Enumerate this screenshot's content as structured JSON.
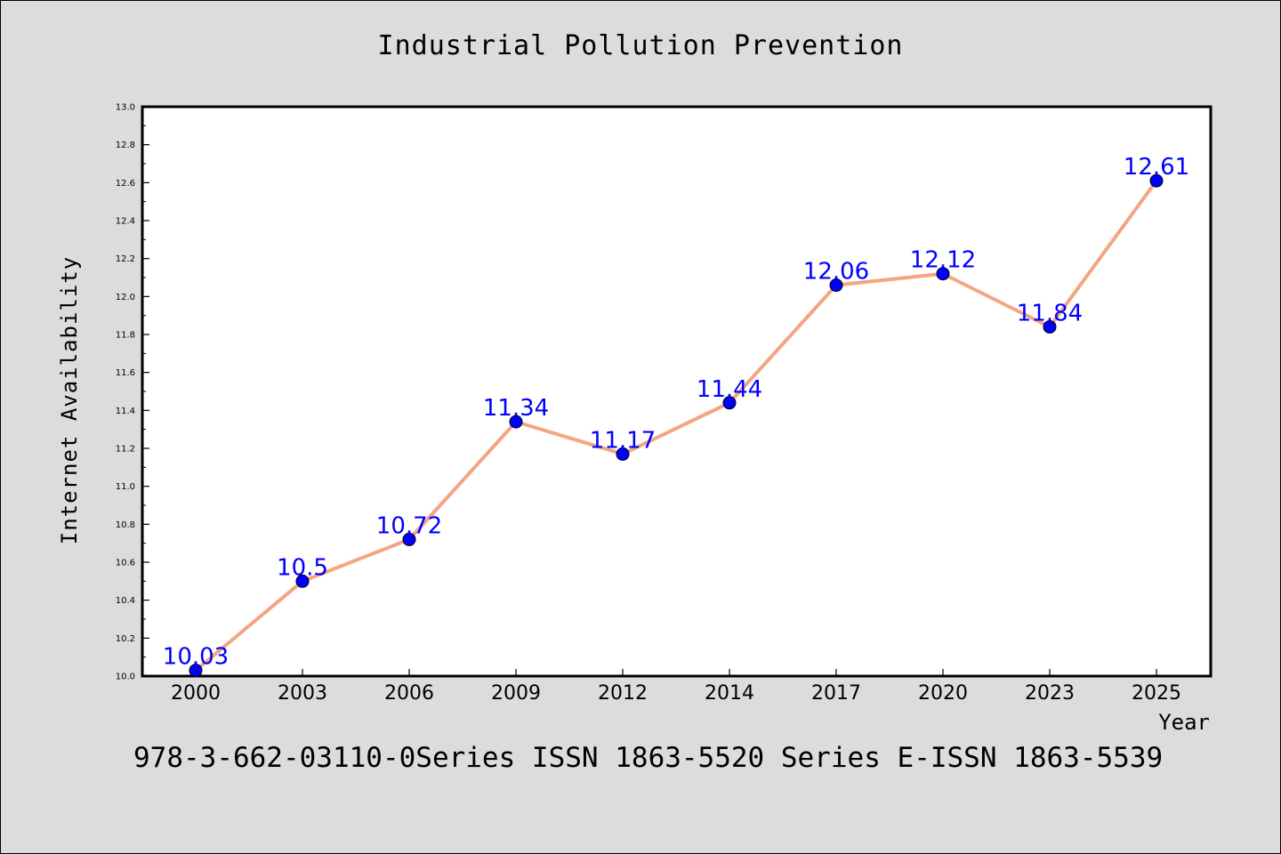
{
  "chart_data": {
    "type": "line",
    "title": "Industrial Pollution Prevention",
    "xlabel": "Year",
    "ylabel": "Internet Availability",
    "categories": [
      "2000",
      "2003",
      "2006",
      "2009",
      "2012",
      "2014",
      "2017",
      "2020",
      "2023",
      "2025"
    ],
    "series": [
      {
        "values": [
          10.03,
          10.5,
          10.72,
          11.34,
          11.17,
          11.44,
          12.06,
          12.12,
          11.84,
          12.61
        ],
        "labels": [
          "10.03",
          "10.5",
          "10.72",
          "11.34",
          "11.17",
          "11.44",
          "12.06",
          "12.12",
          "11.84",
          "12.61"
        ]
      }
    ],
    "ylim": [
      10.0,
      13.0
    ],
    "yticks": [
      "10.0",
      "10.2",
      "10.4",
      "10.6",
      "10.8",
      "11.0",
      "11.2",
      "11.4",
      "11.6",
      "11.8",
      "12.0",
      "12.2",
      "12.4",
      "12.6",
      "12.8",
      "13.0"
    ],
    "grid": false,
    "line_color": "#f4a582",
    "marker_color": "#0000ff",
    "label_color": "#0000ff"
  },
  "footer": {
    "text": "978-3-662-03110-0Series ISSN 1863-5520 Series E-ISSN 1863-5539"
  }
}
